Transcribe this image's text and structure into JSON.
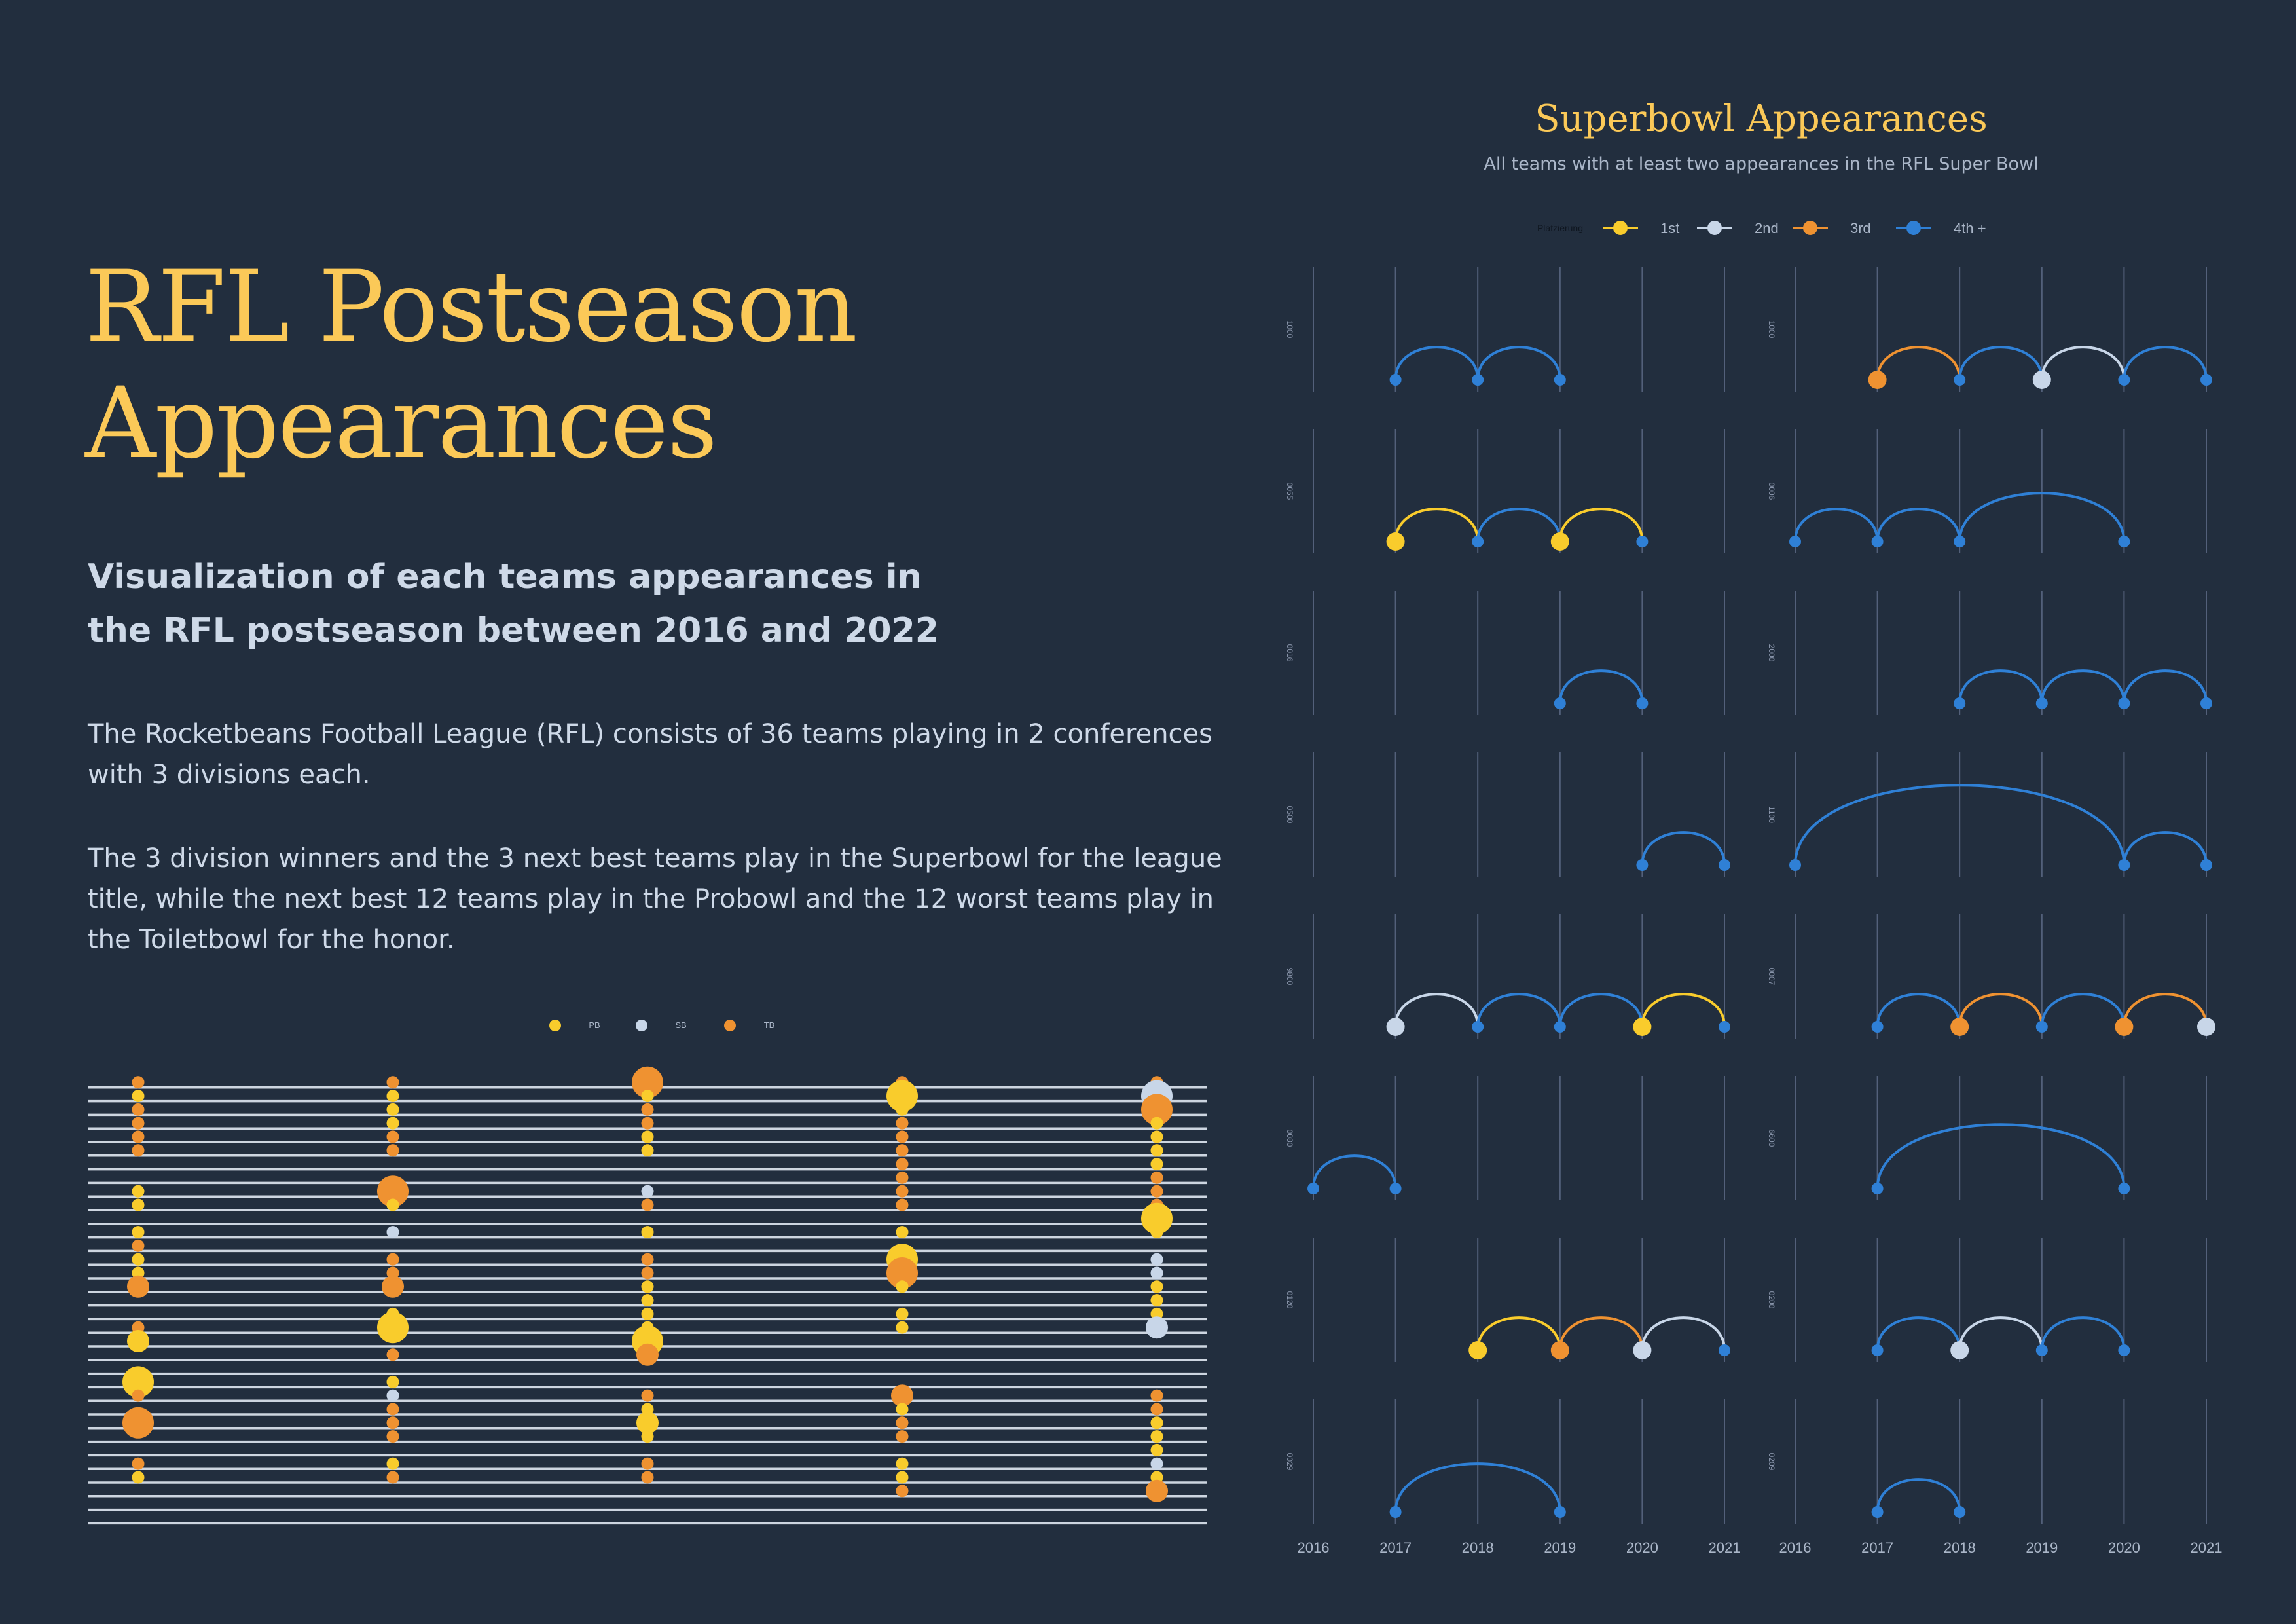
{
  "header": {
    "title_line1": "RFL Postseason",
    "title_line2": "Appearances",
    "subtitle": "Visualization of each teams appearances in the RFL postseason between 2016 and 2022",
    "paragraph1": "The Rocketbeans Football League (RFL) consists of 36 teams playing in 2 conferences with 3 divisions each.",
    "paragraph2": "The 3 division winners and the 3 next best teams play in the Superbowl for the league title, while the next best 12 teams play in the Probowl and the 12 worst teams play in the Toiletbowl for the honor."
  },
  "colors": {
    "background": "#222e3e",
    "title": "#fbc958",
    "text": "#ced9e8",
    "first": "#f9cc2c",
    "second": "#c8d6e8",
    "third": "#ef9231",
    "fourth": "#2f80d6",
    "grid": "#53607a"
  },
  "chart_data": [
    {
      "id": "postseason-dots",
      "type": "scatter",
      "legend": [
        {
          "label": "PB",
          "color": "#f9cc2c"
        },
        {
          "label": "SB",
          "color": "#c8d6e8"
        },
        {
          "label": "TB",
          "color": "#ef9231"
        }
      ],
      "rows": 34,
      "columns": 5,
      "point_size_scale": "larger dot = repeated appearance",
      "points": [
        {
          "col": 1,
          "row": 1,
          "cat": "TB",
          "size": 1
        },
        {
          "col": 1,
          "row": 2,
          "cat": "PB",
          "size": 1
        },
        {
          "col": 1,
          "row": 3,
          "cat": "TB",
          "size": 1
        },
        {
          "col": 1,
          "row": 4,
          "cat": "TB",
          "size": 1
        },
        {
          "col": 1,
          "row": 5,
          "cat": "TB",
          "size": 1
        },
        {
          "col": 1,
          "row": 6,
          "cat": "TB",
          "size": 1
        },
        {
          "col": 1,
          "row": 9,
          "cat": "PB",
          "size": 1
        },
        {
          "col": 1,
          "row": 10,
          "cat": "PB",
          "size": 1
        },
        {
          "col": 1,
          "row": 12,
          "cat": "PB",
          "size": 1
        },
        {
          "col": 1,
          "row": 13,
          "cat": "TB",
          "size": 1
        },
        {
          "col": 1,
          "row": 14,
          "cat": "PB",
          "size": 1
        },
        {
          "col": 1,
          "row": 15,
          "cat": "PB",
          "size": 1
        },
        {
          "col": 1,
          "row": 16,
          "cat": "TB",
          "size": 2
        },
        {
          "col": 1,
          "row": 19,
          "cat": "TB",
          "size": 1
        },
        {
          "col": 1,
          "row": 20,
          "cat": "PB",
          "size": 2
        },
        {
          "col": 1,
          "row": 23,
          "cat": "PB",
          "size": 3
        },
        {
          "col": 1,
          "row": 24,
          "cat": "TB",
          "size": 1
        },
        {
          "col": 1,
          "row": 26,
          "cat": "TB",
          "size": 3
        },
        {
          "col": 1,
          "row": 29,
          "cat": "TB",
          "size": 1
        },
        {
          "col": 1,
          "row": 30,
          "cat": "PB",
          "size": 1
        },
        {
          "col": 2,
          "row": 1,
          "cat": "TB",
          "size": 1
        },
        {
          "col": 2,
          "row": 2,
          "cat": "PB",
          "size": 1
        },
        {
          "col": 2,
          "row": 3,
          "cat": "PB",
          "size": 1
        },
        {
          "col": 2,
          "row": 4,
          "cat": "PB",
          "size": 1
        },
        {
          "col": 2,
          "row": 5,
          "cat": "TB",
          "size": 1
        },
        {
          "col": 2,
          "row": 6,
          "cat": "TB",
          "size": 1
        },
        {
          "col": 2,
          "row": 9,
          "cat": "TB",
          "size": 3
        },
        {
          "col": 2,
          "row": 10,
          "cat": "PB",
          "size": 1
        },
        {
          "col": 2,
          "row": 12,
          "cat": "SB",
          "size": 1
        },
        {
          "col": 2,
          "row": 14,
          "cat": "TB",
          "size": 1
        },
        {
          "col": 2,
          "row": 15,
          "cat": "TB",
          "size": 1
        },
        {
          "col": 2,
          "row": 16,
          "cat": "TB",
          "size": 2
        },
        {
          "col": 2,
          "row": 18,
          "cat": "PB",
          "size": 1
        },
        {
          "col": 2,
          "row": 19,
          "cat": "PB",
          "size": 3
        },
        {
          "col": 2,
          "row": 21,
          "cat": "TB",
          "size": 1
        },
        {
          "col": 2,
          "row": 23,
          "cat": "PB",
          "size": 1
        },
        {
          "col": 2,
          "row": 24,
          "cat": "SB",
          "size": 1
        },
        {
          "col": 2,
          "row": 25,
          "cat": "TB",
          "size": 1
        },
        {
          "col": 2,
          "row": 26,
          "cat": "TB",
          "size": 1
        },
        {
          "col": 2,
          "row": 27,
          "cat": "TB",
          "size": 1
        },
        {
          "col": 2,
          "row": 29,
          "cat": "PB",
          "size": 1
        },
        {
          "col": 2,
          "row": 30,
          "cat": "TB",
          "size": 1
        },
        {
          "col": 3,
          "row": 1,
          "cat": "TB",
          "size": 3
        },
        {
          "col": 3,
          "row": 2,
          "cat": "PB",
          "size": 1
        },
        {
          "col": 3,
          "row": 3,
          "cat": "TB",
          "size": 1
        },
        {
          "col": 3,
          "row": 4,
          "cat": "TB",
          "size": 1
        },
        {
          "col": 3,
          "row": 5,
          "cat": "PB",
          "size": 1
        },
        {
          "col": 3,
          "row": 6,
          "cat": "PB",
          "size": 1
        },
        {
          "col": 3,
          "row": 9,
          "cat": "SB",
          "size": 1
        },
        {
          "col": 3,
          "row": 10,
          "cat": "TB",
          "size": 1
        },
        {
          "col": 3,
          "row": 12,
          "cat": "PB",
          "size": 1
        },
        {
          "col": 3,
          "row": 14,
          "cat": "TB",
          "size": 1
        },
        {
          "col": 3,
          "row": 15,
          "cat": "TB",
          "size": 1
        },
        {
          "col": 3,
          "row": 16,
          "cat": "PB",
          "size": 1
        },
        {
          "col": 3,
          "row": 17,
          "cat": "PB",
          "size": 1
        },
        {
          "col": 3,
          "row": 18,
          "cat": "PB",
          "size": 1
        },
        {
          "col": 3,
          "row": 19,
          "cat": "PB",
          "size": 1
        },
        {
          "col": 3,
          "row": 20,
          "cat": "PB",
          "size": 3
        },
        {
          "col": 3,
          "row": 21,
          "cat": "TB",
          "size": 2
        },
        {
          "col": 3,
          "row": 24,
          "cat": "TB",
          "size": 1
        },
        {
          "col": 3,
          "row": 25,
          "cat": "PB",
          "size": 1
        },
        {
          "col": 3,
          "row": 26,
          "cat": "PB",
          "size": 2
        },
        {
          "col": 3,
          "row": 27,
          "cat": "PB",
          "size": 1
        },
        {
          "col": 3,
          "row": 29,
          "cat": "TB",
          "size": 1
        },
        {
          "col": 3,
          "row": 30,
          "cat": "TB",
          "size": 1
        },
        {
          "col": 4,
          "row": 1,
          "cat": "TB",
          "size": 1
        },
        {
          "col": 4,
          "row": 2,
          "cat": "PB",
          "size": 3
        },
        {
          "col": 4,
          "row": 3,
          "cat": "PB",
          "size": 1
        },
        {
          "col": 4,
          "row": 4,
          "cat": "TB",
          "size": 1
        },
        {
          "col": 4,
          "row": 5,
          "cat": "TB",
          "size": 1
        },
        {
          "col": 4,
          "row": 6,
          "cat": "TB",
          "size": 1
        },
        {
          "col": 4,
          "row": 7,
          "cat": "TB",
          "size": 1
        },
        {
          "col": 4,
          "row": 8,
          "cat": "TB",
          "size": 1
        },
        {
          "col": 4,
          "row": 9,
          "cat": "TB",
          "size": 1
        },
        {
          "col": 4,
          "row": 10,
          "cat": "TB",
          "size": 1
        },
        {
          "col": 4,
          "row": 12,
          "cat": "PB",
          "size": 1
        },
        {
          "col": 4,
          "row": 14,
          "cat": "PB",
          "size": 3
        },
        {
          "col": 4,
          "row": 15,
          "cat": "TB",
          "size": 3
        },
        {
          "col": 4,
          "row": 16,
          "cat": "PB",
          "size": 1
        },
        {
          "col": 4,
          "row": 18,
          "cat": "PB",
          "size": 1
        },
        {
          "col": 4,
          "row": 19,
          "cat": "PB",
          "size": 1
        },
        {
          "col": 4,
          "row": 24,
          "cat": "TB",
          "size": 2
        },
        {
          "col": 4,
          "row": 25,
          "cat": "PB",
          "size": 1
        },
        {
          "col": 4,
          "row": 26,
          "cat": "TB",
          "size": 1
        },
        {
          "col": 4,
          "row": 27,
          "cat": "TB",
          "size": 1
        },
        {
          "col": 4,
          "row": 29,
          "cat": "PB",
          "size": 1
        },
        {
          "col": 4,
          "row": 30,
          "cat": "PB",
          "size": 1
        },
        {
          "col": 4,
          "row": 31,
          "cat": "TB",
          "size": 1
        },
        {
          "col": 5,
          "row": 1,
          "cat": "TB",
          "size": 1
        },
        {
          "col": 5,
          "row": 2,
          "cat": "SB",
          "size": 3
        },
        {
          "col": 5,
          "row": 3,
          "cat": "TB",
          "size": 3
        },
        {
          "col": 5,
          "row": 4,
          "cat": "PB",
          "size": 1
        },
        {
          "col": 5,
          "row": 5,
          "cat": "PB",
          "size": 1
        },
        {
          "col": 5,
          "row": 6,
          "cat": "PB",
          "size": 1
        },
        {
          "col": 5,
          "row": 7,
          "cat": "PB",
          "size": 1
        },
        {
          "col": 5,
          "row": 8,
          "cat": "TB",
          "size": 1
        },
        {
          "col": 5,
          "row": 9,
          "cat": "TB",
          "size": 1
        },
        {
          "col": 5,
          "row": 10,
          "cat": "TB",
          "size": 1
        },
        {
          "col": 5,
          "row": 11,
          "cat": "PB",
          "size": 3
        },
        {
          "col": 5,
          "row": 12,
          "cat": "PB",
          "size": 1
        },
        {
          "col": 5,
          "row": 14,
          "cat": "SB",
          "size": 1
        },
        {
          "col": 5,
          "row": 15,
          "cat": "SB",
          "size": 1
        },
        {
          "col": 5,
          "row": 16,
          "cat": "PB",
          "size": 1
        },
        {
          "col": 5,
          "row": 17,
          "cat": "PB",
          "size": 1
        },
        {
          "col": 5,
          "row": 18,
          "cat": "PB",
          "size": 1
        },
        {
          "col": 5,
          "row": 19,
          "cat": "SB",
          "size": 2
        },
        {
          "col": 5,
          "row": 24,
          "cat": "TB",
          "size": 1
        },
        {
          "col": 5,
          "row": 25,
          "cat": "TB",
          "size": 1
        },
        {
          "col": 5,
          "row": 26,
          "cat": "PB",
          "size": 1
        },
        {
          "col": 5,
          "row": 27,
          "cat": "PB",
          "size": 1
        },
        {
          "col": 5,
          "row": 28,
          "cat": "PB",
          "size": 1
        },
        {
          "col": 5,
          "row": 29,
          "cat": "SB",
          "size": 1
        },
        {
          "col": 5,
          "row": 30,
          "cat": "PB",
          "size": 1
        },
        {
          "col": 5,
          "row": 31,
          "cat": "TB",
          "size": 2
        }
      ]
    },
    {
      "id": "superbowl-appearances",
      "type": "line",
      "title": "Superbowl Appearances",
      "subtitle": "All teams with at least two appearances in the RFL Super Bowl",
      "legend_title": "Platzierung",
      "legend": [
        {
          "label": "1st",
          "place": 1,
          "color": "#f9cc2c"
        },
        {
          "label": "2nd",
          "place": 2,
          "color": "#c8d6e8"
        },
        {
          "label": "3rd",
          "place": 3,
          "color": "#ef9231"
        },
        {
          "label": "4th +",
          "place": 4,
          "color": "#2f80d6"
        }
      ],
      "x": [
        2016,
        2017,
        2018,
        2019,
        2020,
        2021
      ],
      "x_tick_labels": [
        "2016",
        "2017",
        "2018",
        "2019",
        "2020",
        "2021"
      ],
      "panels": [
        {
          "label": "1000",
          "points": [
            {
              "year": 2017,
              "place": 4
            },
            {
              "year": 2018,
              "place": 4
            },
            {
              "year": 2019,
              "place": 4
            }
          ]
        },
        {
          "label": "1000",
          "points": [
            {
              "year": 2017,
              "place": 3
            },
            {
              "year": 2018,
              "place": 4
            },
            {
              "year": 2019,
              "place": 2
            },
            {
              "year": 2020,
              "place": 4
            },
            {
              "year": 2021,
              "place": 4
            }
          ]
        },
        {
          "label": "0055",
          "points": [
            {
              "year": 2017,
              "place": 1
            },
            {
              "year": 2018,
              "place": 4
            },
            {
              "year": 2019,
              "place": 1
            },
            {
              "year": 2020,
              "place": 4
            }
          ]
        },
        {
          "label": "0006",
          "points": [
            {
              "year": 2016,
              "place": 4
            },
            {
              "year": 2017,
              "place": 4
            },
            {
              "year": 2018,
              "place": 4
            },
            {
              "year": 2020,
              "place": 4
            }
          ]
        },
        {
          "label": "0016",
          "points": [
            {
              "year": 2019,
              "place": 4
            },
            {
              "year": 2020,
              "place": 4
            }
          ]
        },
        {
          "label": "2000",
          "points": [
            {
              "year": 2018,
              "place": 4
            },
            {
              "year": 2019,
              "place": 4
            },
            {
              "year": 2020,
              "place": 4
            },
            {
              "year": 2021,
              "place": 4
            }
          ]
        },
        {
          "label": "0500",
          "points": [
            {
              "year": 2020,
              "place": 4
            },
            {
              "year": 2021,
              "place": 4
            }
          ]
        },
        {
          "label": "1100",
          "points": [
            {
              "year": 2016,
              "place": 4
            },
            {
              "year": 2020,
              "place": 4
            },
            {
              "year": 2021,
              "place": 4
            }
          ]
        },
        {
          "label": "9800",
          "points": [
            {
              "year": 2017,
              "place": 2
            },
            {
              "year": 2018,
              "place": 4
            },
            {
              "year": 2019,
              "place": 4
            },
            {
              "year": 2020,
              "place": 1
            },
            {
              "year": 2021,
              "place": 4
            }
          ]
        },
        {
          "label": "0007",
          "points": [
            {
              "year": 2017,
              "place": 4
            },
            {
              "year": 2018,
              "place": 3
            },
            {
              "year": 2019,
              "place": 4
            },
            {
              "year": 2020,
              "place": 3
            },
            {
              "year": 2021,
              "place": 2
            }
          ]
        },
        {
          "label": "0080",
          "points": [
            {
              "year": 2016,
              "place": 4
            },
            {
              "year": 2017,
              "place": 4
            }
          ]
        },
        {
          "label": "6600",
          "points": [
            {
              "year": 2017,
              "place": 4
            },
            {
              "year": 2020,
              "place": 4
            }
          ]
        },
        {
          "label": "0120",
          "points": [
            {
              "year": 2018,
              "place": 1
            },
            {
              "year": 2019,
              "place": 3
            },
            {
              "year": 2020,
              "place": 2
            },
            {
              "year": 2021,
              "place": 4
            }
          ]
        },
        {
          "label": "0200",
          "points": [
            {
              "year": 2017,
              "place": 4
            },
            {
              "year": 2018,
              "place": 2
            },
            {
              "year": 2019,
              "place": 4
            },
            {
              "year": 2020,
              "place": 4
            }
          ]
        },
        {
          "label": "0029",
          "points": [
            {
              "year": 2017,
              "place": 4
            },
            {
              "year": 2019,
              "place": 4
            }
          ]
        },
        {
          "label": "0209",
          "points": [
            {
              "year": 2017,
              "place": 4
            },
            {
              "year": 2018,
              "place": 4
            }
          ]
        }
      ]
    }
  ]
}
